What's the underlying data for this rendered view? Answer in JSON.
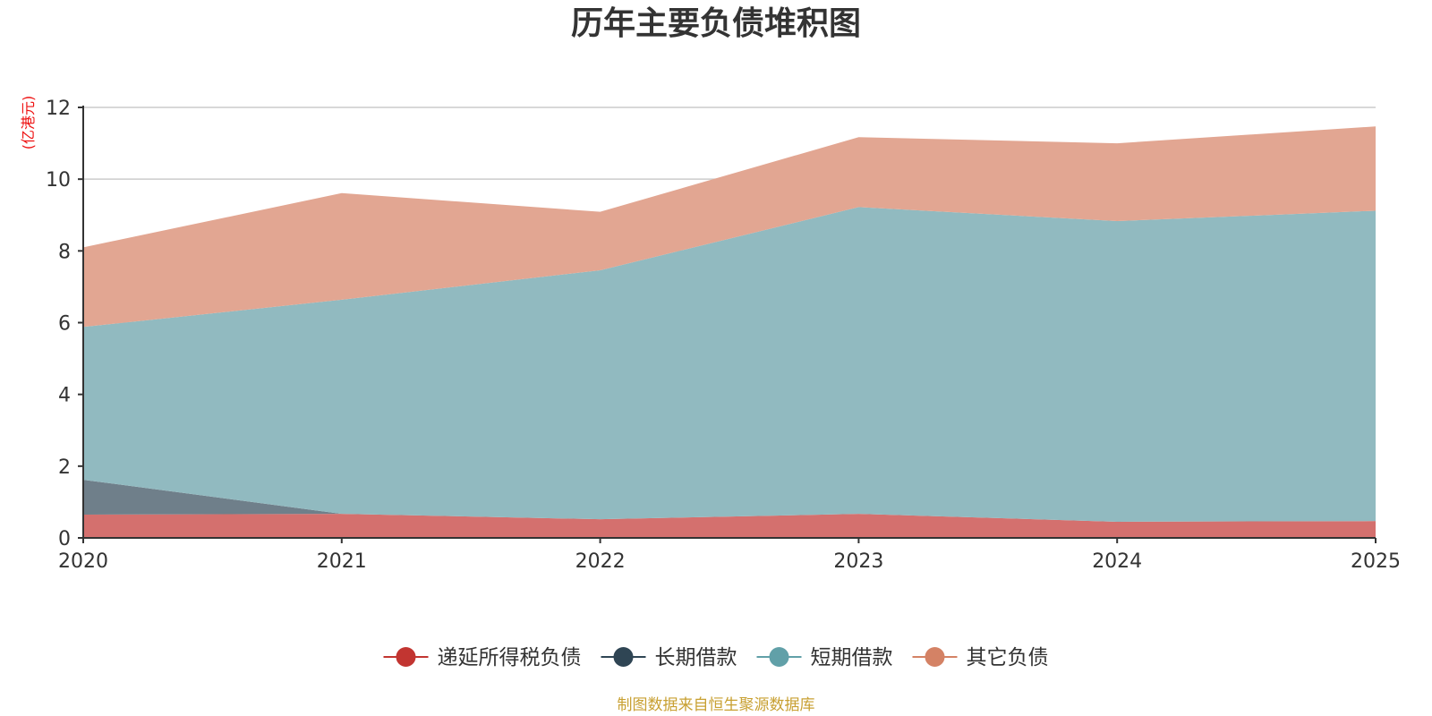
{
  "chart_data": {
    "type": "area",
    "stacked": true,
    "title": "历年主要负债堆积图",
    "ylabel": "(亿港元)",
    "xlabel": "",
    "source": "制图数据来自恒生聚源数据库",
    "x": [
      "2020",
      "2021",
      "2022",
      "2023",
      "2024",
      "2025"
    ],
    "ylim": [
      0,
      12
    ],
    "yticks": [
      "0",
      "2",
      "4",
      "6",
      "8",
      "10",
      "12"
    ],
    "grid": true,
    "legend_position": "bottom-center",
    "series": [
      {
        "name": "递延所得税负债",
        "color": "#c23531",
        "fill": "#d4706e",
        "values": [
          0.65,
          0.67,
          0.52,
          0.67,
          0.45,
          0.47
        ]
      },
      {
        "name": "长期借款",
        "color": "#2f4554",
        "fill": "#6f7f8a",
        "values": [
          0.97,
          0.0,
          0.0,
          0.0,
          0.0,
          0.0
        ]
      },
      {
        "name": "短期借款",
        "color": "#61a0a8",
        "fill": "#91bac0",
        "values": [
          4.26,
          5.97,
          6.94,
          8.55,
          8.38,
          8.65
        ]
      },
      {
        "name": "其它负债",
        "color": "#d48265",
        "fill": "#e2a692",
        "values": [
          2.22,
          2.97,
          1.63,
          1.95,
          2.17,
          2.35
        ]
      }
    ]
  }
}
